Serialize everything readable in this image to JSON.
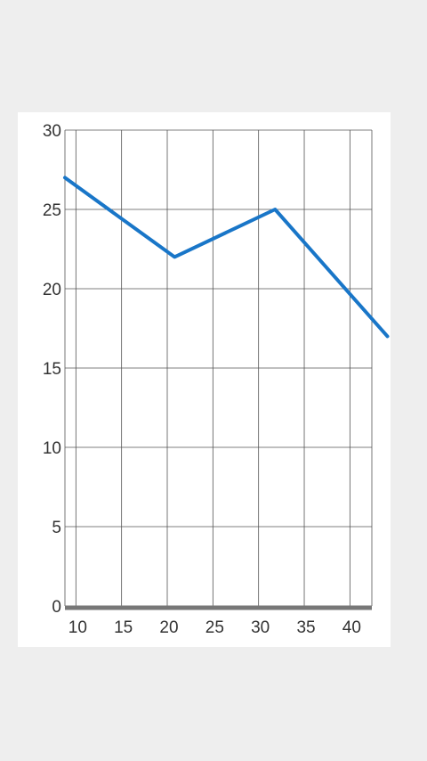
{
  "chart_data": {
    "type": "line",
    "title": "",
    "xlabel": "",
    "ylabel": "",
    "x": [
      8.8,
      20.8,
      31.8,
      44.1
    ],
    "series": [
      {
        "values": [
          27,
          22,
          25,
          17
        ]
      }
    ],
    "xlim": [
      8.8,
      42.4
    ],
    "ylim": [
      0,
      30
    ],
    "x_ticks": [
      10,
      15,
      20,
      25,
      30,
      35,
      40
    ],
    "x_tick_labels": [
      "10",
      "15",
      "20",
      "25",
      "30",
      "35",
      "40"
    ],
    "y_ticks": [
      0,
      5,
      10,
      15,
      20,
      25,
      30
    ],
    "y_tick_labels": [
      "0",
      "5",
      "10",
      "15",
      "20",
      "25",
      "30"
    ],
    "grid": true,
    "legend": "none",
    "colors": {
      "line": "#1976c8",
      "grid": "#555555",
      "axis": "#777777",
      "background": "#ffffff",
      "page": "#eeeeee"
    }
  }
}
